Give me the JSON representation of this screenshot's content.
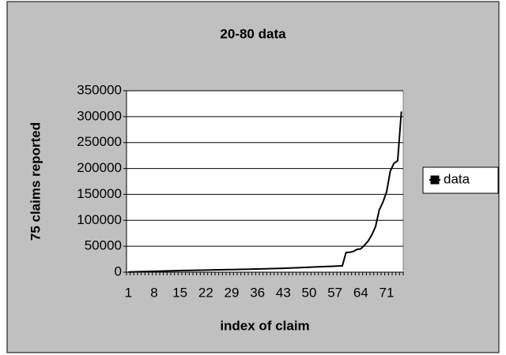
{
  "chart_data": {
    "type": "line",
    "title": "20-80 data",
    "x_label": "index of claim",
    "y_label": "75 claims reported",
    "categories": [
      1,
      null,
      null,
      null,
      null,
      null,
      null,
      8,
      null,
      null,
      null,
      null,
      null,
      null,
      15,
      null,
      null,
      null,
      null,
      null,
      null,
      22,
      null,
      null,
      null,
      null,
      null,
      null,
      29,
      null,
      null,
      null,
      null,
      null,
      null,
      36,
      null,
      null,
      null,
      null,
      null,
      null,
      43,
      null,
      null,
      null,
      null,
      null,
      null,
      50,
      null,
      null,
      null,
      null,
      null,
      null,
      57,
      null,
      null,
      null,
      null,
      null,
      null,
      64,
      null,
      null,
      null,
      null,
      null,
      null,
      71,
      null,
      null,
      null,
      null
    ],
    "series": [
      {
        "name": "data",
        "color": "#000000",
        "values": [
          300,
          500,
          700,
          900,
          1100,
          1300,
          1500,
          1700,
          1900,
          2100,
          2300,
          2500,
          2700,
          2900,
          3000,
          3200,
          3300,
          3500,
          3600,
          3800,
          3900,
          4000,
          4200,
          4300,
          4500,
          4600,
          4800,
          4900,
          5000,
          5200,
          5300,
          5500,
          5600,
          5800,
          6000,
          6100,
          6300,
          6500,
          6700,
          6900,
          7100,
          7300,
          7500,
          7800,
          8000,
          8300,
          8600,
          8900,
          9200,
          9500,
          9800,
          10100,
          10400,
          10700,
          11000,
          11300,
          11600,
          11900,
          12200,
          38000,
          38500,
          40000,
          44000,
          45000,
          52000,
          60000,
          72000,
          88000,
          120000,
          135000,
          155000,
          195000,
          210000,
          215000,
          310000
        ]
      }
    ],
    "ylim": [
      0,
      350000
    ],
    "yticks": [
      0,
      50000,
      100000,
      150000,
      200000,
      250000,
      300000,
      350000
    ],
    "grid": true,
    "legend": "right"
  }
}
